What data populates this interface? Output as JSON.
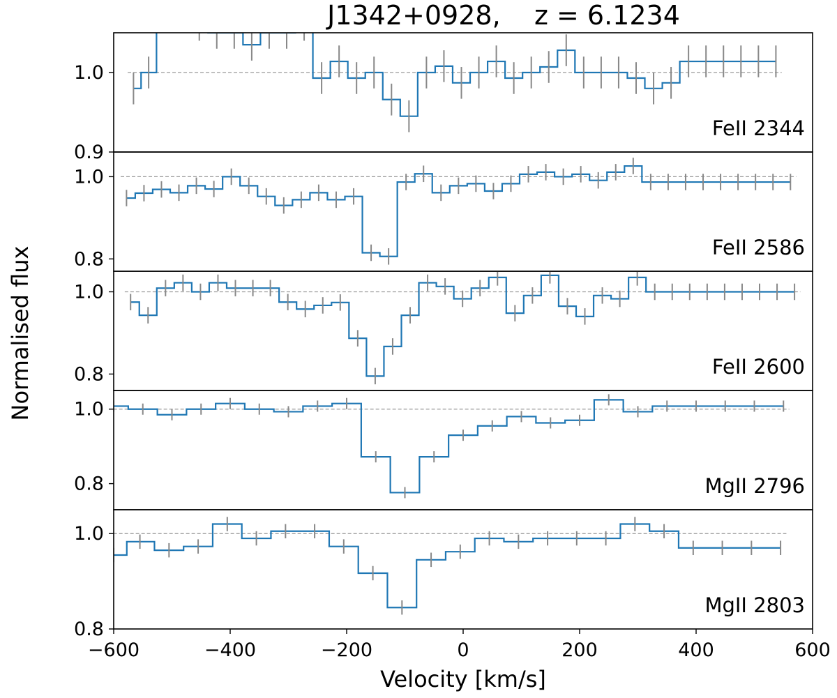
{
  "chart_data": {
    "type": "line",
    "title": "J1342+0928,    z = 6.1234",
    "xlabel": "Velocity [km/s]",
    "ylabel": "Normalised flux",
    "xlim": [
      -600,
      600
    ],
    "xticks": [
      -600,
      -400,
      -200,
      0,
      200,
      400,
      600
    ],
    "xtick_labels": [
      "−600",
      "−400",
      "−200",
      "0",
      "200",
      "400",
      "600"
    ],
    "colors": {
      "spectrum": "#1f77b4",
      "errors": "#888888",
      "continuum": "#999999"
    },
    "panels": [
      {
        "label": "FeII 2344",
        "ylim": [
          0.9,
          1.05
        ],
        "yticks": [
          0.9,
          1.0
        ],
        "ytick_labels": [
          "0.9",
          "1.0"
        ],
        "x": [
          -566,
          -540,
          -513,
          -483,
          -453,
          -423,
          -393,
          -363,
          -333,
          -303,
          -273,
          -243,
          -213,
          -183,
          -153,
          -123,
          -93,
          -63,
          -33,
          -3,
          27,
          57,
          87,
          117,
          147,
          177,
          207,
          237,
          267,
          297,
          327,
          357,
          387,
          417,
          447,
          477,
          507,
          537
        ],
        "flux": [
          0.98,
          1.0,
          1.07,
          1.07,
          1.06,
          1.05,
          1.05,
          1.035,
          1.05,
          1.05,
          1.06,
          0.993,
          1.014,
          0.993,
          1.0,
          0.966,
          0.945,
          1.0,
          1.008,
          0.987,
          1.0,
          1.014,
          0.993,
          1.0,
          1.007,
          1.028,
          1.0,
          1.0,
          1.0,
          0.993,
          0.98,
          0.987,
          1.014,
          1.014,
          1.014,
          1.014,
          1.014,
          1.014
        ],
        "error": [
          0.02,
          0.02,
          0.02,
          0.02,
          0.02,
          0.02,
          0.02,
          0.02,
          0.02,
          0.02,
          0.02,
          0.02,
          0.02,
          0.02,
          0.02,
          0.02,
          0.02,
          0.02,
          0.02,
          0.02,
          0.02,
          0.02,
          0.02,
          0.02,
          0.02,
          0.02,
          0.02,
          0.02,
          0.02,
          0.02,
          0.02,
          0.02,
          0.02,
          0.02,
          0.02,
          0.02,
          0.02,
          0.02
        ]
      },
      {
        "label": "FeII 2586",
        "ylim": [
          0.77,
          1.06
        ],
        "yticks": [
          0.8,
          1.0
        ],
        "ytick_labels": [
          "0.8",
          "1.0"
        ],
        "x": [
          -578,
          -548,
          -518,
          -488,
          -458,
          -428,
          -398,
          -368,
          -338,
          -308,
          -278,
          -248,
          -218,
          -188,
          -158,
          -128,
          -98,
          -68,
          -38,
          -8,
          22,
          52,
          82,
          112,
          142,
          172,
          202,
          232,
          262,
          292,
          322,
          352,
          382,
          412,
          442,
          472,
          502,
          532,
          562
        ],
        "flux": [
          0.948,
          0.96,
          0.969,
          0.961,
          0.978,
          0.97,
          1.0,
          0.978,
          0.952,
          0.93,
          0.944,
          0.961,
          0.944,
          0.952,
          0.815,
          0.806,
          0.987,
          1.007,
          0.961,
          0.978,
          0.983,
          0.965,
          0.983,
          1.006,
          1.011,
          1.0,
          1.006,
          0.991,
          1.011,
          1.026,
          0.987,
          0.987,
          0.987,
          0.987,
          0.987,
          0.987,
          0.987,
          0.987,
          0.987
        ],
        "error": [
          0.02,
          0.02,
          0.02,
          0.02,
          0.02,
          0.02,
          0.02,
          0.02,
          0.02,
          0.02,
          0.02,
          0.02,
          0.02,
          0.02,
          0.02,
          0.02,
          0.02,
          0.02,
          0.02,
          0.02,
          0.02,
          0.02,
          0.02,
          0.02,
          0.02,
          0.02,
          0.02,
          0.02,
          0.02,
          0.02,
          0.02,
          0.02,
          0.02,
          0.02,
          0.02,
          0.02,
          0.02,
          0.02,
          0.02
        ]
      },
      {
        "label": "FeII 2600",
        "ylim": [
          0.76,
          1.05
        ],
        "yticks": [
          0.8,
          1.0
        ],
        "ytick_labels": [
          "0.8",
          "1.0"
        ],
        "x": [
          -571,
          -541,
          -511,
          -481,
          -451,
          -421,
          -391,
          -361,
          -331,
          -301,
          -271,
          -241,
          -211,
          -181,
          -151,
          -121,
          -91,
          -61,
          -31,
          -1,
          29,
          59,
          89,
          119,
          149,
          179,
          209,
          239,
          269,
          299,
          329,
          359,
          389,
          419,
          449,
          479,
          509,
          539,
          569
        ],
        "flux": [
          0.975,
          0.943,
          1.009,
          1.022,
          1.0,
          1.022,
          1.009,
          1.009,
          1.009,
          0.975,
          0.958,
          0.967,
          0.974,
          0.887,
          0.795,
          0.867,
          0.943,
          1.022,
          1.013,
          0.983,
          1.009,
          1.035,
          0.948,
          0.991,
          1.04,
          0.965,
          0.94,
          0.991,
          0.983,
          1.035,
          1.0,
          1.0,
          1.0,
          1.0,
          1.0,
          1.0,
          1.0,
          1.0,
          1.0
        ],
        "error": [
          0.02,
          0.02,
          0.02,
          0.02,
          0.02,
          0.02,
          0.02,
          0.02,
          0.02,
          0.02,
          0.02,
          0.02,
          0.02,
          0.02,
          0.02,
          0.02,
          0.02,
          0.02,
          0.02,
          0.02,
          0.02,
          0.02,
          0.02,
          0.02,
          0.02,
          0.02,
          0.02,
          0.02,
          0.02,
          0.02,
          0.02,
          0.02,
          0.02,
          0.02,
          0.02,
          0.02,
          0.02,
          0.02,
          0.02
        ]
      },
      {
        "label": "MgII 2796",
        "ylim": [
          0.73,
          1.05
        ],
        "yticks": [
          0.8,
          1.0
        ],
        "ytick_labels": [
          "0.8",
          "1.0"
        ],
        "x": [
          -600,
          -550,
          -500,
          -450,
          -400,
          -350,
          -300,
          -250,
          -200,
          -150,
          -100,
          -50,
          0,
          50,
          100,
          150,
          200,
          250,
          300,
          350,
          400,
          450,
          500,
          550
        ],
        "flux": [
          1.008,
          1.0,
          0.985,
          1.0,
          1.015,
          1.0,
          0.993,
          1.008,
          1.015,
          0.872,
          0.776,
          0.872,
          0.93,
          0.955,
          0.98,
          0.963,
          0.97,
          1.025,
          0.993,
          1.008,
          1.008,
          1.008,
          1.008,
          1.008
        ],
        "error": [
          0.015,
          0.015,
          0.015,
          0.015,
          0.015,
          0.015,
          0.015,
          0.015,
          0.015,
          0.015,
          0.015,
          0.015,
          0.015,
          0.015,
          0.015,
          0.015,
          0.015,
          0.015,
          0.015,
          0.015,
          0.015,
          0.015,
          0.015,
          0.015
        ]
      },
      {
        "label": "MgII 2803",
        "ylim": [
          0.8,
          1.05
        ],
        "yticks": [
          0.8,
          1.0
        ],
        "ytick_labels": [
          "0.8",
          "1.0"
        ],
        "x": [
          -600,
          -555,
          -505,
          -455,
          -405,
          -355,
          -305,
          -255,
          -205,
          -155,
          -105,
          -55,
          -5,
          45,
          95,
          145,
          195,
          245,
          295,
          345,
          395,
          445,
          495,
          545
        ],
        "flux": [
          0.955,
          0.983,
          0.965,
          0.973,
          1.02,
          0.99,
          1.005,
          1.005,
          0.973,
          0.917,
          0.845,
          0.945,
          0.962,
          0.99,
          0.983,
          0.99,
          0.99,
          0.99,
          1.02,
          1.005,
          0.97,
          0.97,
          0.97,
          0.97
        ],
        "error": [
          0.015,
          0.015,
          0.015,
          0.015,
          0.015,
          0.015,
          0.015,
          0.015,
          0.015,
          0.015,
          0.015,
          0.015,
          0.015,
          0.015,
          0.015,
          0.015,
          0.015,
          0.015,
          0.015,
          0.015,
          0.015,
          0.015,
          0.015,
          0.015
        ]
      }
    ]
  }
}
